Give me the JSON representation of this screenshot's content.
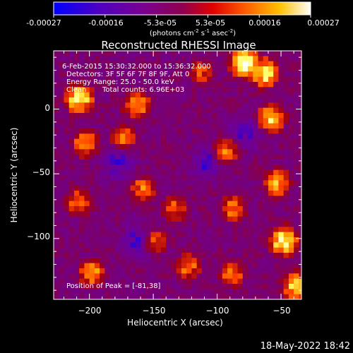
{
  "colorbar": {
    "tick_labels": [
      "-0.00027",
      "-0.00016",
      "-5.3e-05",
      "5.3e-05",
      "0.00016",
      "0.00027"
    ],
    "units_prefix": "(photons cm",
    "units_exp1": "-2",
    "units_mid": " s",
    "units_exp2": "-1",
    "units_mid2": " asec",
    "units_exp3": "-2",
    "units_suffix": ")"
  },
  "annotations": {
    "time_range": "6-Feb-2015 15:30:32.000 to 15:36:32.000",
    "detectors": "Detectors: 3F 5F 6F 7F 8F 9F, Att 0",
    "energy": "Energy Range: 25.0 - 50.0 keV",
    "method": "Clean",
    "counts": "Total counts: 6.96E+03",
    "peak": "Position of Peak = [-81,38]"
  },
  "timestamp": "18-May-2022 18:42",
  "chart_data": {
    "type": "heatmap",
    "title": "Reconstructed RHESSI Image",
    "xlabel": "Heliocentric X (arcsec)",
    "ylabel": "Heliocentric Y (arcsec)",
    "xlim": [
      -228,
      -34
    ],
    "ylim": [
      -147,
      45
    ],
    "x_ticks": [
      -200,
      -150,
      -100,
      -50
    ],
    "y_ticks": [
      -100,
      -50,
      0
    ],
    "x_tick_labels": [
      "−200",
      "−150",
      "−100",
      "−50"
    ],
    "y_tick_labels": [
      "−100",
      "−50",
      "0"
    ],
    "value_range": [
      -0.00027,
      0.00027
    ],
    "colormap": [
      "#0000ff",
      "#6a00a0",
      "#7a0070",
      "#a00010",
      "#ff4000",
      "#ffa000",
      "#ffff60",
      "#ffffff"
    ],
    "peak_position": [
      -81,
      38
    ],
    "bright_regions": [
      {
        "x": -210,
        "y": 10,
        "level": 0.95
      },
      {
        "x": -205,
        "y": -25,
        "level": 0.75
      },
      {
        "x": -210,
        "y": -70,
        "level": 0.7
      },
      {
        "x": -200,
        "y": -125,
        "level": 0.75
      },
      {
        "x": -165,
        "y": 5,
        "level": 0.8
      },
      {
        "x": -175,
        "y": -20,
        "level": 0.7
      },
      {
        "x": -160,
        "y": -60,
        "level": 0.7
      },
      {
        "x": -150,
        "y": -100,
        "level": 0.65
      },
      {
        "x": -135,
        "y": -75,
        "level": 0.65
      },
      {
        "x": -125,
        "y": -120,
        "level": 0.7
      },
      {
        "x": -115,
        "y": 30,
        "level": 0.6
      },
      {
        "x": -95,
        "y": -30,
        "level": 0.7
      },
      {
        "x": -90,
        "y": -75,
        "level": 0.7
      },
      {
        "x": -90,
        "y": -125,
        "level": 0.7
      },
      {
        "x": -81,
        "y": 38,
        "level": 1.0
      },
      {
        "x": -65,
        "y": 30,
        "level": 0.95
      },
      {
        "x": -60,
        "y": -5,
        "level": 0.85
      },
      {
        "x": -55,
        "y": -55,
        "level": 0.8
      },
      {
        "x": -50,
        "y": -100,
        "level": 0.95
      },
      {
        "x": -40,
        "y": -135,
        "level": 0.85
      }
    ],
    "dark_regions": [
      {
        "x": -165,
        "y": -100,
        "level": 0.0
      },
      {
        "x": -180,
        "y": -40,
        "level": 0.05
      },
      {
        "x": -110,
        "y": -40,
        "level": 0.05
      },
      {
        "x": -80,
        "y": -15,
        "level": 0.05
      }
    ]
  }
}
